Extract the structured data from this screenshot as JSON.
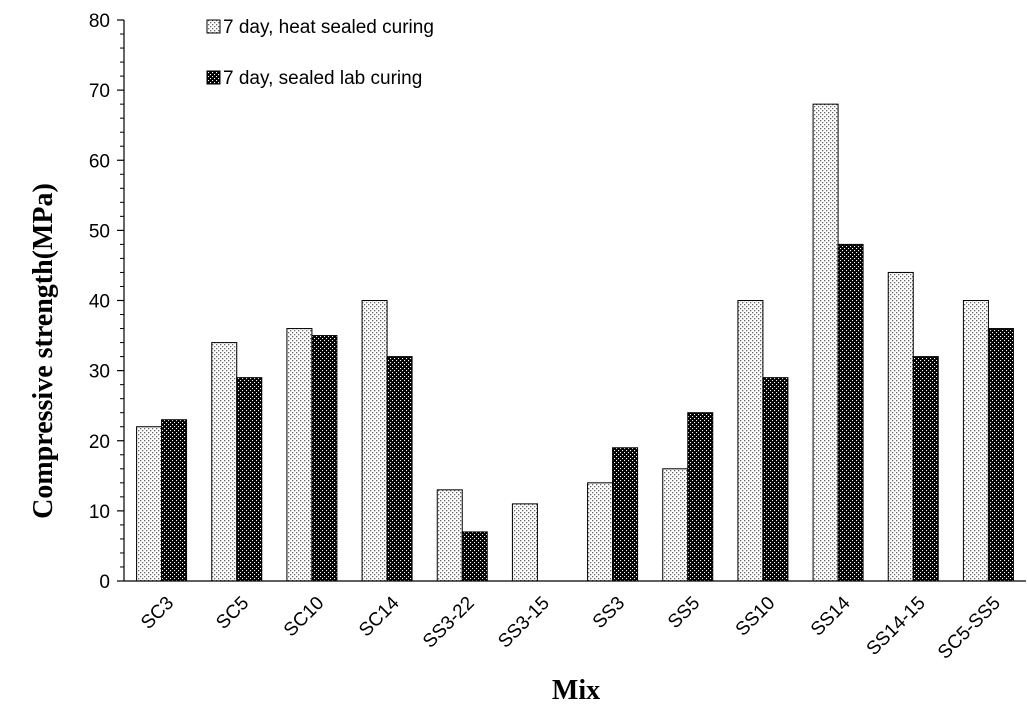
{
  "chart_data": {
    "type": "bar",
    "title": "",
    "xlabel": "Mix",
    "ylabel": "Compressive strength(MPa)",
    "ylim": [
      0,
      80
    ],
    "yticks": [
      0,
      10,
      20,
      30,
      40,
      50,
      60,
      70,
      80
    ],
    "grid": false,
    "legend_position": "top-left",
    "categories": [
      "SC3",
      "SC5",
      "SC10",
      "SC14",
      "SS3-22",
      "SS3-15",
      "SS3",
      "SS5",
      "SS10",
      "SS14",
      "SS14-15",
      "SC5-SS5"
    ],
    "series": [
      {
        "name": "7 day, heat sealed curing",
        "pattern": "light-dotted",
        "color": "#e6e6e6",
        "values": [
          22,
          34,
          36,
          40,
          13,
          11,
          14,
          16,
          40,
          68,
          44,
          40
        ]
      },
      {
        "name": "7 day, sealed lab curing",
        "pattern": "dark-dotted",
        "color": "#000000",
        "values": [
          23,
          29,
          35,
          32,
          7,
          null,
          19,
          24,
          29,
          48,
          32,
          36
        ]
      }
    ]
  }
}
